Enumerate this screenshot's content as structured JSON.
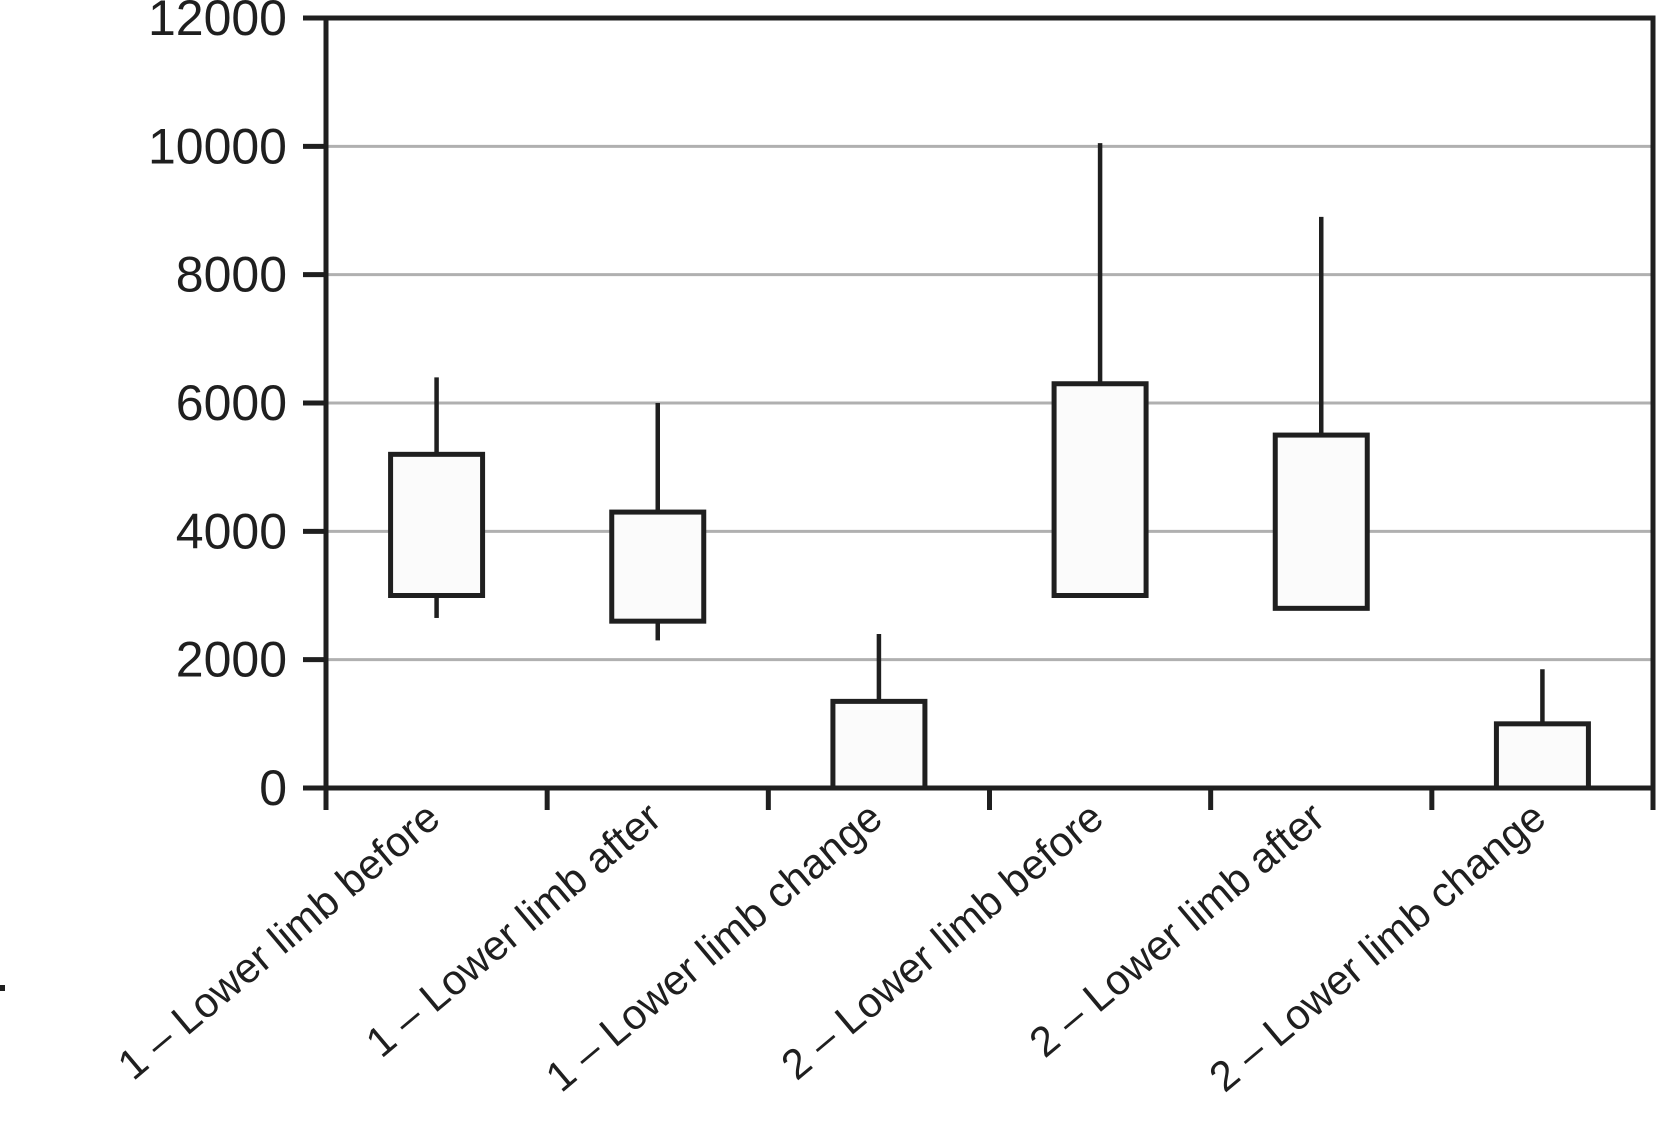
{
  "figure": {
    "background": "#ffffff"
  },
  "chart_data": {
    "type": "boxplot",
    "title": "",
    "xlabel": "",
    "ylabel": "",
    "ylim": [
      0,
      12000
    ],
    "y_ticks": [
      0,
      2000,
      4000,
      6000,
      8000,
      10000,
      12000
    ],
    "y_tick_labels": [
      "0",
      "2000",
      "4000",
      "6000",
      "8000",
      "10000",
      "12000"
    ],
    "grid": "horizontal",
    "legend": "none",
    "median_shown": false,
    "whisker_caps": false,
    "categories": [
      "1 – Lower limb before",
      "1 – Lower limb after",
      "1 – Lower limb change",
      "2 – Lower limb before",
      "2 – Lower limb after",
      "2 – Lower limb change"
    ],
    "boxes": [
      {
        "label": "1 – Lower limb before",
        "lower": 3000,
        "upper": 5200,
        "max": 6400,
        "min": 2650
      },
      {
        "label": "1 – Lower limb after",
        "lower": 2600,
        "upper": 4300,
        "max": 6000,
        "min": 2300
      },
      {
        "label": "1 – Lower limb change",
        "lower": 0,
        "upper": 1350,
        "max": 2400,
        "min": null
      },
      {
        "label": "2 – Lower limb before",
        "lower": 3000,
        "upper": 6300,
        "max": 10050,
        "min": null
      },
      {
        "label": "2 – Lower limb after",
        "lower": 2800,
        "upper": 5500,
        "max": 8900,
        "min": null
      },
      {
        "label": "2 – Lower limb change",
        "lower": 0,
        "upper": 1000,
        "max": 1850,
        "min": null
      }
    ],
    "colors": {
      "axis": "#1f1f1f",
      "gridline": "#b0b0b0",
      "box_stroke": "#1f1f1f",
      "box_fill": "#fbfbfb"
    }
  }
}
